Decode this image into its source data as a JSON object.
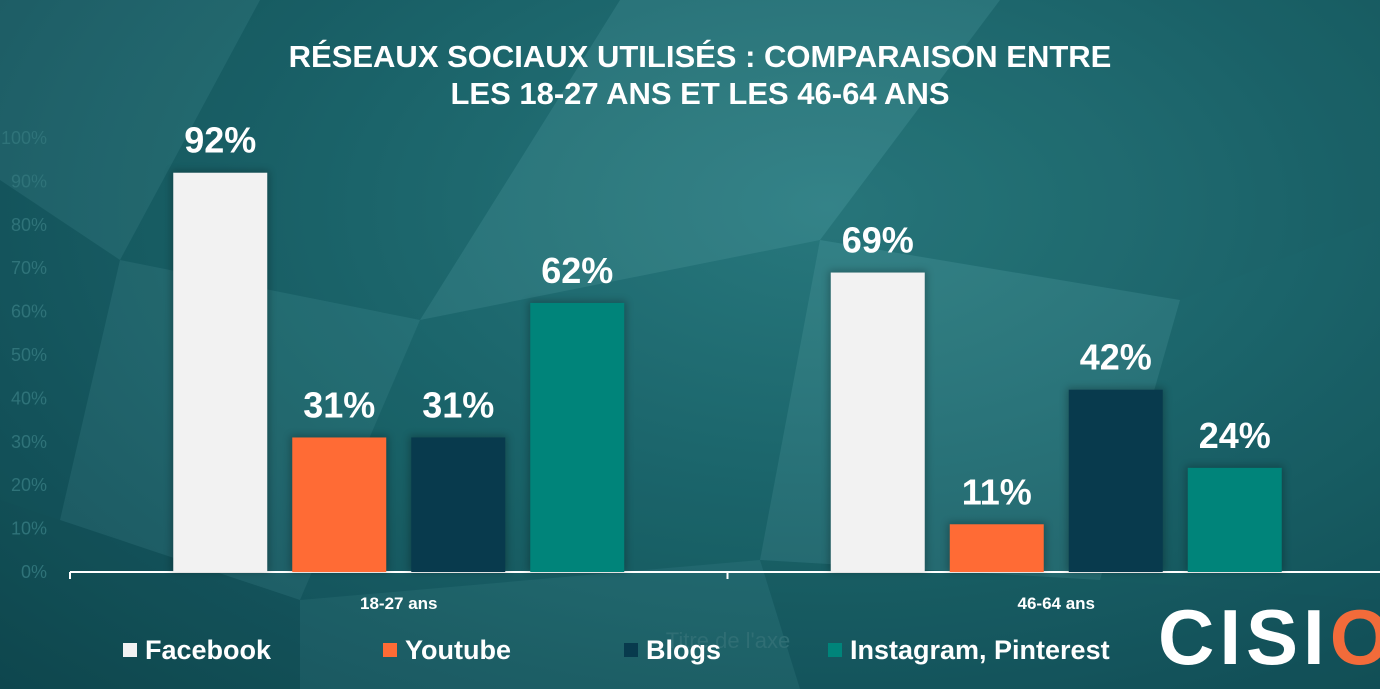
{
  "chart_data": {
    "type": "bar",
    "title_lines": [
      "RÉSEAUX SOCIAUX UTILISÉS : COMPARAISON ENTRE",
      "LES 18-27 ANS ET LES 46-64 ANS"
    ],
    "categories": [
      "18-27 ans",
      "46-64 ans"
    ],
    "xlabel": "Titre de l'axe",
    "ylim": [
      0,
      100
    ],
    "yticks": [
      "0%",
      "10%",
      "20%",
      "30%",
      "40%",
      "50%",
      "60%",
      "70%",
      "80%",
      "90%",
      "100%"
    ],
    "series": [
      {
        "name": "Facebook",
        "values": [
          92,
          69
        ],
        "labels": [
          "92%",
          "69%"
        ],
        "color": "#f2f2f2"
      },
      {
        "name": "Youtube",
        "values": [
          31,
          11
        ],
        "labels": [
          "31%",
          "11%"
        ],
        "color": "#ff6b35"
      },
      {
        "name": "Blogs",
        "values": [
          31,
          42
        ],
        "labels": [
          "31%",
          "42%"
        ],
        "color": "#083a4d"
      },
      {
        "name": "Instagram, Pinterest",
        "values": [
          62,
          24
        ],
        "labels": [
          "62%",
          "24%"
        ],
        "color": "#00847a"
      }
    ],
    "legend_position": "bottom",
    "grid": false
  },
  "brand": {
    "logo_text": "CISION",
    "logo_accent_letter": "O",
    "registered": "®",
    "accent_color": "#f26b3a"
  }
}
